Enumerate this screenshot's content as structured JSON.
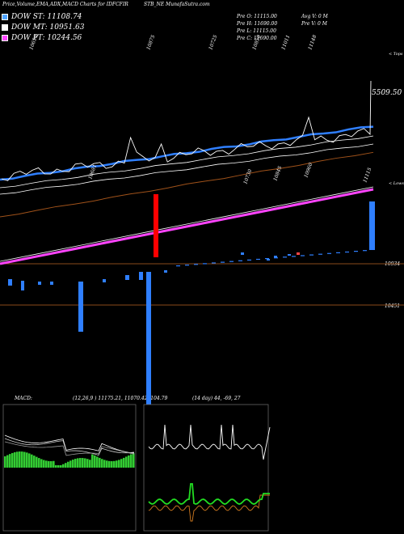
{
  "header": {
    "title_left": "Price,Volume,EMA,ADX,MACD Charts for IDFCFIR",
    "title_right": "STB_NE MunafaSutra.com"
  },
  "legend": [
    {
      "label": "DOW ST: 11108.74",
      "color": "#4fa3ff"
    },
    {
      "label": "DOW MT: 10951.63",
      "color": "#ffffff"
    },
    {
      "label": "DOW PT: 10244.56",
      "color": "#ff44ff"
    }
  ],
  "ohlc": {
    "open": "Pre  O: 11115.00",
    "high": "Pre  H: 11690.00",
    "low": "Pre  L: 11115.00",
    "close": "Pre  C: 11690.00",
    "avg_volume": "Avg V: 0  M",
    "prev_volume": "Pre  V: 0  M"
  },
  "labels": {
    "last_price": "5509.50",
    "top_right": "< Tops",
    "lows_right": "< Lows",
    "level_1": "10934",
    "level_2": "10451"
  },
  "macd_panel": {
    "label": "MACD:",
    "values": "(12,26,9 ) 11175.21,  11070.42, 104.79"
  },
  "adx_panel": {
    "values": "(14  day) 44,  -69,  27"
  },
  "chart_data": {
    "type": "line",
    "title": "Price,Volume,EMA,ADX,MACD Charts for IDFCFIR STB_NE MunafaSutra.com",
    "top_price_labels": [
      "10650",
      "10875",
      "10725",
      "10850",
      "11011",
      "11148"
    ],
    "low_price_labels": [
      "10681",
      "10730",
      "10845",
      "10960",
      "11115"
    ],
    "reference_levels": [
      10934,
      10451
    ],
    "last_price": 5509.5,
    "series": [
      {
        "name": "DOW ST",
        "value": 11108.74,
        "color": "#4fa3ff"
      },
      {
        "name": "DOW MT",
        "value": 10951.63,
        "color": "#ffffff"
      },
      {
        "name": "DOW PT",
        "value": 10244.56,
        "color": "#ff44ff"
      }
    ],
    "macd": {
      "params": "12,26,9",
      "macd": 11175.21,
      "signal": 11070.42,
      "histogram": 104.79
    },
    "adx": {
      "period": 14,
      "adx": 44,
      "minus_di": -69,
      "plus_di": 27
    }
  }
}
